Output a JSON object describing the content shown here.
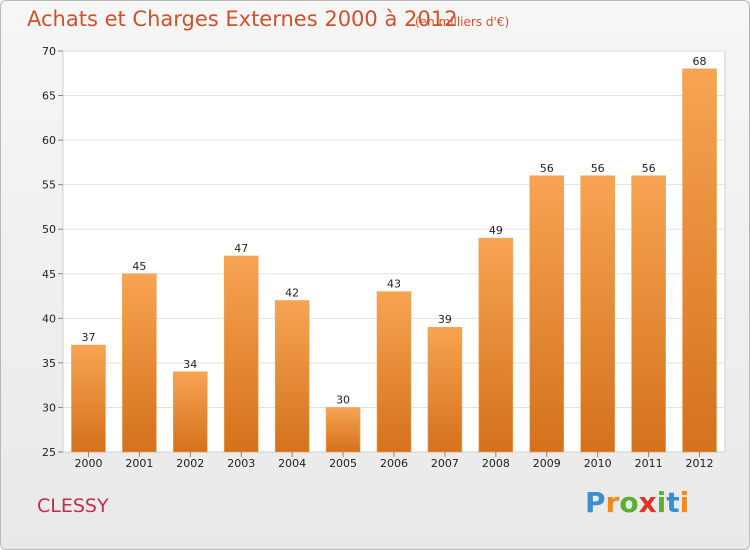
{
  "chart_data": {
    "type": "bar",
    "title": "Achats et Charges Externes 2000 à 2012",
    "subtitle": "(en milliers d'€)",
    "categories": [
      "2000",
      "2001",
      "2002",
      "2003",
      "2004",
      "2005",
      "2006",
      "2007",
      "2008",
      "2009",
      "2010",
      "2011",
      "2012"
    ],
    "values": [
      37,
      45,
      34,
      47,
      42,
      30,
      43,
      39,
      49,
      56,
      56,
      56,
      68
    ],
    "ylim": [
      25,
      70
    ],
    "yticks": [
      25,
      30,
      35,
      40,
      45,
      50,
      55,
      60,
      65,
      70
    ],
    "grid": true,
    "bar_color_top": "#f7a452",
    "bar_color_bottom": "#d4711c",
    "xlabel": "",
    "ylabel": ""
  },
  "commune": "CLESSY",
  "logo": {
    "letters": [
      "P",
      "r",
      "o",
      "x",
      "i",
      "t",
      "i"
    ],
    "colors": [
      "#3a8fd0",
      "#f08a1c",
      "#5bb030",
      "#e0342a",
      "#5bb030",
      "#3a8fd0",
      "#f08a1c"
    ]
  }
}
